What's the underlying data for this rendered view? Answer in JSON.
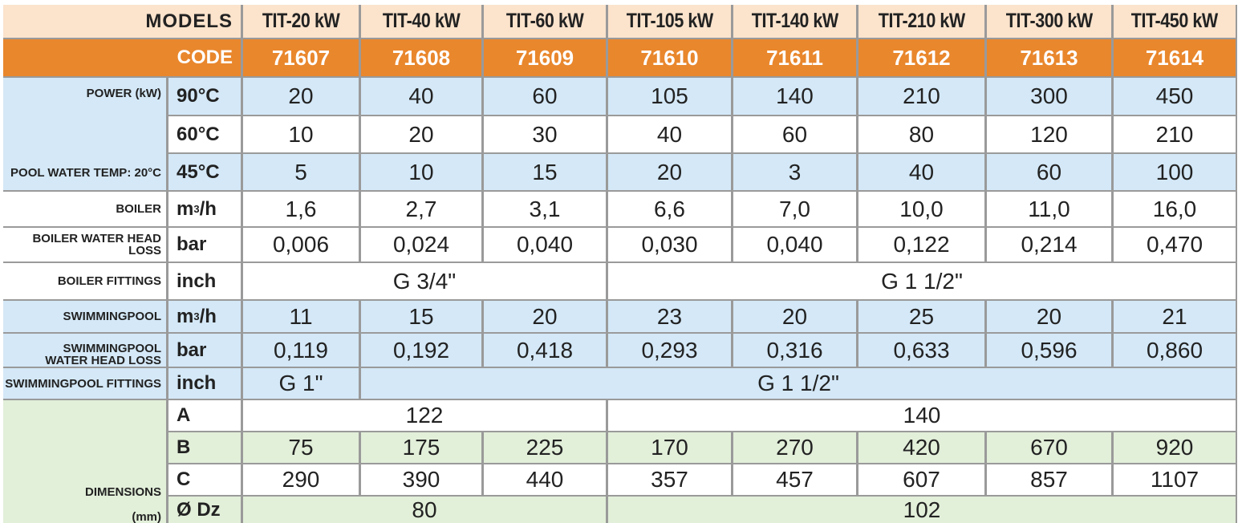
{
  "header": {
    "models_label": "MODELS",
    "code_label": "CODE",
    "models": [
      "TIT-20 kW",
      "TIT-40 kW",
      "TIT-60 kW",
      "TIT-105 kW",
      "TIT-140 kW",
      "TIT-210 kW",
      "TIT-300 kW",
      "TIT-450 kW"
    ],
    "codes": [
      "71607",
      "71608",
      "71609",
      "71610",
      "71611",
      "71612",
      "71613",
      "71614"
    ]
  },
  "power": {
    "label": "POWER (kW)",
    "sublabel": "POOL WATER TEMP: 20°C",
    "rows": [
      {
        "unit": "90°C",
        "values": [
          "20",
          "40",
          "60",
          "105",
          "140",
          "210",
          "300",
          "450"
        ]
      },
      {
        "unit": "60°C",
        "values": [
          "10",
          "20",
          "30",
          "40",
          "60",
          "80",
          "120",
          "210"
        ]
      },
      {
        "unit": "45°C",
        "values": [
          "5",
          "10",
          "15",
          "20",
          "3",
          "40",
          "60",
          "100"
        ]
      }
    ]
  },
  "boiler": {
    "label": "BOILER",
    "unit_base": "m",
    "unit_sup": "3",
    "unit_tail": "/h",
    "values": [
      "1,6",
      "2,7",
      "3,1",
      "6,6",
      "7,0",
      "10,0",
      "11,0",
      "16,0"
    ]
  },
  "boiler_head_loss": {
    "label": "BOILER WATER HEAD LOSS",
    "unit": "bar",
    "values": [
      "0,006",
      "0,024",
      "0,040",
      "0,030",
      "0,040",
      "0,122",
      "0,214",
      "0,470"
    ]
  },
  "boiler_fittings": {
    "label": "BOILER FITTINGS",
    "unit": "inch",
    "group1": "G 3/4\"",
    "group2": "G 1 1/2\""
  },
  "swimmingpool": {
    "label": "SWIMMINGPOOL",
    "unit_base": "m",
    "unit_sup": "3",
    "unit_tail": "/h",
    "values": [
      "11",
      "15",
      "20",
      "23",
      "20",
      "25",
      "20",
      "21"
    ]
  },
  "swimmingpool_head_loss": {
    "label_line1": "SWIMMINGPOOL",
    "label_line2": "WATER HEAD LOSS",
    "unit": "bar",
    "values": [
      "0,119",
      "0,192",
      "0,418",
      "0,293",
      "0,316",
      "0,633",
      "0,596",
      "0,860"
    ]
  },
  "swimmingpool_fittings": {
    "label": "SWIMMINGPOOL FITTINGS",
    "unit": "inch",
    "group1": "G 1\"",
    "group2": "G 1 1/2\""
  },
  "dimensions": {
    "label_line1": "DIMENSIONS",
    "label_line2": "(mm)",
    "A": {
      "unit": "A",
      "group1": "122",
      "group2": "140"
    },
    "B": {
      "unit": "B",
      "values": [
        "75",
        "175",
        "225",
        "170",
        "270",
        "420",
        "670",
        "920"
      ]
    },
    "C": {
      "unit": "C",
      "values": [
        "290",
        "390",
        "440",
        "357",
        "457",
        "607",
        "857",
        "1107"
      ]
    },
    "Dz": {
      "unit": "Ø Dz",
      "group1": "80",
      "group2": "102"
    }
  }
}
